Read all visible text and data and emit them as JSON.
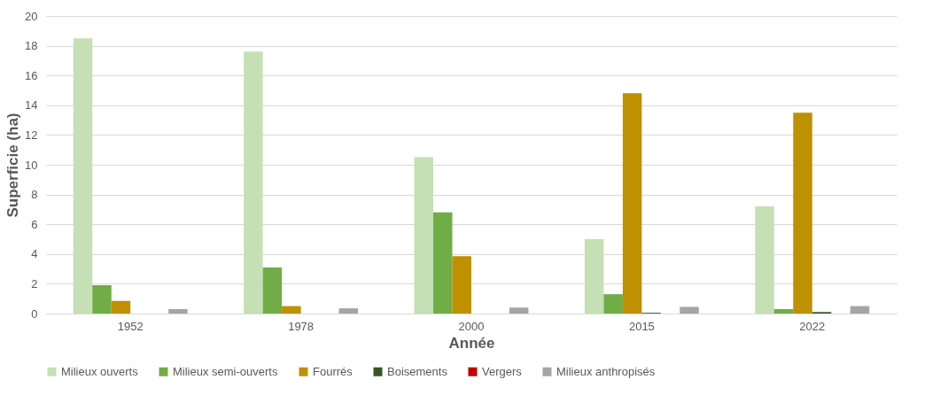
{
  "chart_data": {
    "type": "bar",
    "xlabel": "Année",
    "ylabel": "Superficie (ha)",
    "categories": [
      "1952",
      "1978",
      "2000",
      "2015",
      "2022"
    ],
    "series": [
      {
        "name": "Milieux ouverts",
        "color": "#c5e0b4",
        "values": [
          18.5,
          17.6,
          10.5,
          5.0,
          7.2
        ]
      },
      {
        "name": "Milieux semi-ouverts",
        "color": "#70ad47",
        "values": [
          1.9,
          3.1,
          6.8,
          1.3,
          0.3
        ]
      },
      {
        "name": "Fourrés",
        "color": "#bf9000",
        "values": [
          0.85,
          0.5,
          3.85,
          14.8,
          13.5
        ]
      },
      {
        "name": "Boisements",
        "color": "#375623",
        "values": [
          0,
          0,
          0,
          0.05,
          0.1
        ]
      },
      {
        "name": "Vergers",
        "color": "#c00000",
        "values": [
          0,
          0,
          0,
          0,
          0
        ]
      },
      {
        "name": "Milieux anthropisés",
        "color": "#a5a5a5",
        "values": [
          0.3,
          0.35,
          0.4,
          0.45,
          0.5
        ]
      }
    ],
    "ylim": [
      0,
      20
    ],
    "yticks": [
      0,
      2,
      4,
      6,
      8,
      10,
      12,
      14,
      16,
      18,
      20
    ],
    "grid": "y",
    "legend": "bottom"
  }
}
